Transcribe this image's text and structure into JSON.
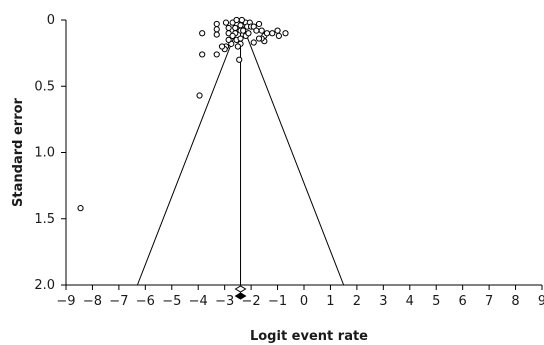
{
  "chart_data": {
    "type": "scatter",
    "title": "",
    "xlabel": "Logit event rate",
    "ylabel": "Standard error",
    "xlim": [
      -9,
      9
    ],
    "ylim": [
      0,
      2.0
    ],
    "y_inverted": true,
    "x_ticks": [
      -9,
      -8,
      -7,
      -6,
      -5,
      -4,
      -3,
      -2,
      -1,
      0,
      1,
      2,
      3,
      4,
      5,
      6,
      7,
      8,
      9
    ],
    "x_tick_labels": [
      "−9",
      "−8",
      "−7",
      "−6",
      "−5",
      "−4",
      "−3",
      "−2",
      "−1",
      "0",
      "1",
      "2",
      "3",
      "4",
      "5",
      "6",
      "7",
      "8",
      "9"
    ],
    "y_ticks": [
      0,
      0.5,
      1.0,
      1.5,
      2.0
    ],
    "y_tick_labels": [
      "0",
      "0.5",
      "1.0",
      "1.5",
      "2.0"
    ],
    "grid": false,
    "pooled_estimate": -2.4,
    "funnel": {
      "apex": [
        -2.4,
        0
      ],
      "left_base": [
        -6.3,
        2.0
      ],
      "right_base": [
        1.5,
        2.0
      ]
    },
    "series": [
      {
        "type": "scatter",
        "marker": "open-circle",
        "points": [
          [
            -8.45,
            1.42
          ],
          [
            -3.95,
            0.57
          ],
          [
            -3.85,
            0.26
          ],
          [
            -3.3,
            0.26
          ],
          [
            -3.85,
            0.1
          ],
          [
            -3.3,
            0.03
          ],
          [
            -3.3,
            0.07
          ],
          [
            -3.3,
            0.11
          ],
          [
            -2.95,
            0.02
          ],
          [
            -2.85,
            0.06
          ],
          [
            -2.85,
            0.1
          ],
          [
            -2.6,
            0.06
          ],
          [
            -2.6,
            0.1
          ],
          [
            -2.4,
            0.08
          ],
          [
            -2.4,
            0.04
          ],
          [
            -2.2,
            0.02
          ],
          [
            -2.35,
            0.0
          ],
          [
            -2.05,
            0.02
          ],
          [
            -2.7,
            0.02
          ],
          [
            -2.55,
            0.0
          ],
          [
            -2.15,
            0.05
          ],
          [
            -2.0,
            0.05
          ],
          [
            -1.9,
            0.05
          ],
          [
            -1.7,
            0.03
          ],
          [
            -1.8,
            0.08
          ],
          [
            -1.6,
            0.08
          ],
          [
            -1.5,
            0.12
          ],
          [
            -1.4,
            0.1
          ],
          [
            -1.2,
            0.1
          ],
          [
            -1.0,
            0.08
          ],
          [
            -0.7,
            0.1
          ],
          [
            -0.95,
            0.12
          ],
          [
            -1.5,
            0.16
          ],
          [
            -1.6,
            0.14
          ],
          [
            -1.7,
            0.14
          ],
          [
            -1.9,
            0.17
          ],
          [
            -2.2,
            0.12
          ],
          [
            -2.4,
            0.18
          ],
          [
            -2.5,
            0.2
          ],
          [
            -2.7,
            0.12
          ],
          [
            -2.75,
            0.18
          ],
          [
            -2.85,
            0.15
          ],
          [
            -2.55,
            0.15
          ],
          [
            -2.95,
            0.2
          ],
          [
            -3.0,
            0.22
          ],
          [
            -3.1,
            0.2
          ],
          [
            -2.45,
            0.3
          ],
          [
            -2.4,
            0.14
          ],
          [
            -2.3,
            0.08
          ],
          [
            -2.1,
            0.1
          ]
        ]
      }
    ],
    "summary_markers": [
      {
        "style": "open-diamond",
        "x": -2.4,
        "y_offset": "below-axis-1"
      },
      {
        "style": "filled-diamond",
        "x": -2.4,
        "y_offset": "below-axis-2"
      }
    ]
  }
}
